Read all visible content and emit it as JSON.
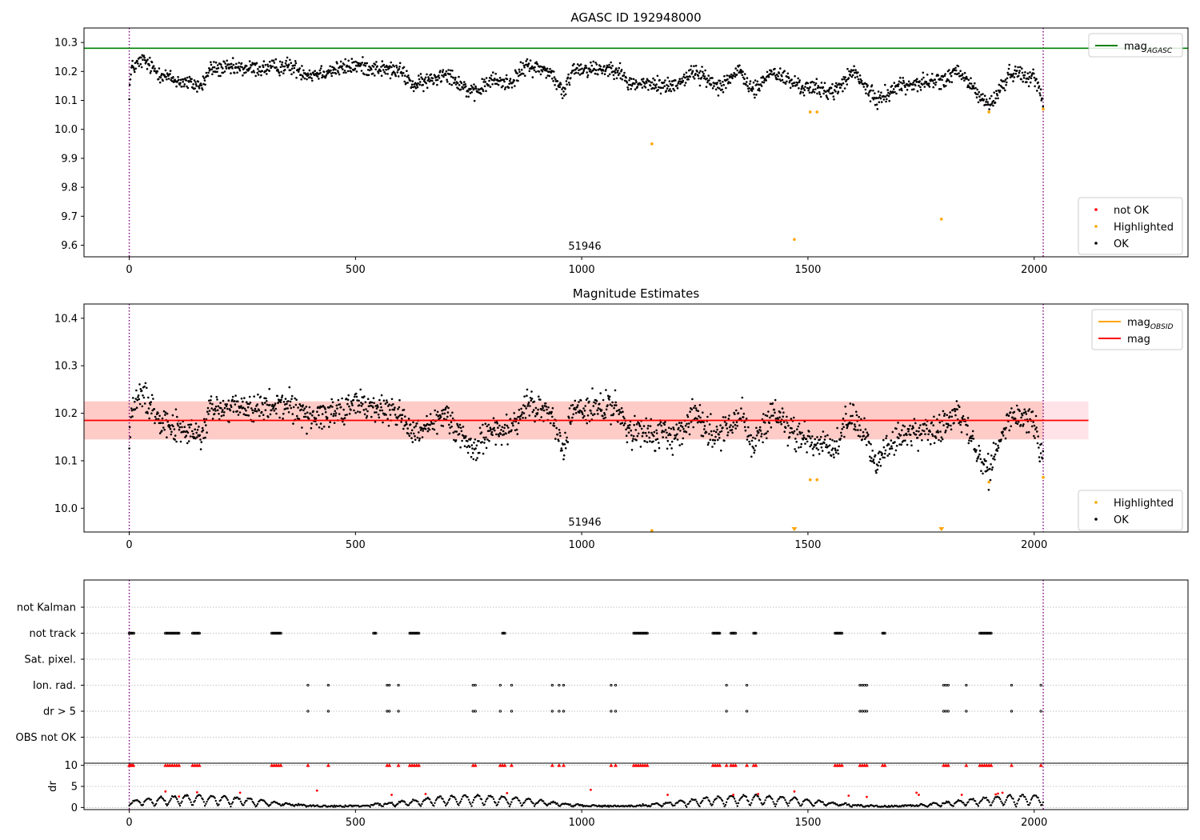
{
  "chart_data": [
    {
      "type": "scatter",
      "title": "AGASC ID 192948000",
      "xlabel": "",
      "ylabel": "",
      "xlim": [
        -100,
        2340
      ],
      "ylim": [
        9.56,
        10.35
      ],
      "x_ticks": [
        0,
        500,
        1000,
        1500,
        2000
      ],
      "y_ticks": [
        9.6,
        9.7,
        9.8,
        9.9,
        10.0,
        10.1,
        10.2,
        10.3
      ],
      "annotation": "51946",
      "vlines": [
        0,
        2020
      ],
      "hlines": [
        {
          "name": "mag",
          "sub": "AGASC",
          "y": 10.28,
          "color": "#008000"
        }
      ],
      "legend_lines": [
        {
          "name": "mag",
          "sub": "AGASC",
          "color": "#008000"
        }
      ],
      "legend_points": [
        {
          "name": "not OK",
          "color": "#ff0000"
        },
        {
          "name": "Highlighted",
          "color": "#ffa500"
        },
        {
          "name": "OK",
          "color": "#000000"
        }
      ],
      "series": [
        {
          "name": "OK",
          "color": "#000000",
          "noise": 0.02,
          "trend": [
            [
              0,
              10.13
            ],
            [
              5,
              10.21
            ],
            [
              30,
              10.24
            ],
            [
              60,
              10.2
            ],
            [
              100,
              10.17
            ],
            [
              160,
              10.15
            ],
            [
              180,
              10.21
            ],
            [
              300,
              10.21
            ],
            [
              350,
              10.22
            ],
            [
              400,
              10.19
            ],
            [
              500,
              10.22
            ],
            [
              600,
              10.2
            ],
            [
              630,
              10.15
            ],
            [
              680,
              10.18
            ],
            [
              700,
              10.2
            ],
            [
              760,
              10.12
            ],
            [
              800,
              10.17
            ],
            [
              840,
              10.16
            ],
            [
              880,
              10.22
            ],
            [
              930,
              10.2
            ],
            [
              960,
              10.12
            ],
            [
              980,
              10.21
            ],
            [
              1080,
              10.21
            ],
            [
              1100,
              10.16
            ],
            [
              1200,
              10.15
            ],
            [
              1250,
              10.2
            ],
            [
              1300,
              10.15
            ],
            [
              1350,
              10.2
            ],
            [
              1380,
              10.13
            ],
            [
              1420,
              10.2
            ],
            [
              1480,
              10.15
            ],
            [
              1560,
              10.13
            ],
            [
              1600,
              10.2
            ],
            [
              1650,
              10.1
            ],
            [
              1700,
              10.15
            ],
            [
              1800,
              10.17
            ],
            [
              1830,
              10.2
            ],
            [
              1850,
              10.17
            ],
            [
              1900,
              10.08
            ],
            [
              1950,
              10.2
            ],
            [
              2000,
              10.18
            ],
            [
              2020,
              10.1
            ]
          ]
        },
        {
          "name": "Highlighted",
          "color": "#ffa500",
          "points": [
            [
              1155,
              9.95
            ],
            [
              1470,
              9.62
            ],
            [
              1505,
              10.06
            ],
            [
              1520,
              10.06
            ],
            [
              1795,
              9.69
            ],
            [
              1900,
              10.06
            ],
            [
              2020,
              10.07
            ]
          ]
        }
      ]
    },
    {
      "type": "scatter",
      "title": "Magnitude Estimates",
      "xlabel": "",
      "ylabel": "",
      "xlim": [
        -100,
        2340
      ],
      "ylim": [
        9.95,
        10.43
      ],
      "x_ticks": [
        0,
        500,
        1000,
        1500,
        2000
      ],
      "y_ticks": [
        10.0,
        10.1,
        10.2,
        10.3,
        10.4
      ],
      "annotation": "51946",
      "vlines": [
        0,
        2020
      ],
      "bands": [
        {
          "x0": -100,
          "x1": 2020,
          "y0": 10.145,
          "y1": 10.225,
          "color": "#ffa07a",
          "opacity": 0.45
        },
        {
          "x0": -100,
          "x1": 2120,
          "y0": 10.145,
          "y1": 10.225,
          "color": "#ffc0cb",
          "opacity": 0.45
        }
      ],
      "hlines": [
        {
          "name": "mag",
          "y": 10.185,
          "x0": -100,
          "x1": 2120,
          "color": "#ff0000"
        }
      ],
      "legend_lines": [
        {
          "name": "mag",
          "sub": "OBSID",
          "color": "#ffa500"
        },
        {
          "name": "mag",
          "color": "#ff0000"
        }
      ],
      "legend_points": [
        {
          "name": "Highlighted",
          "color": "#ffa500"
        },
        {
          "name": "OK",
          "color": "#000000"
        }
      ],
      "series": [
        {
          "name": "OK",
          "color": "#000000",
          "noise": 0.022,
          "trend": [
            [
              0,
              10.13
            ],
            [
              5,
              10.21
            ],
            [
              30,
              10.24
            ],
            [
              60,
              10.2
            ],
            [
              100,
              10.17
            ],
            [
              160,
              10.15
            ],
            [
              180,
              10.21
            ],
            [
              300,
              10.21
            ],
            [
              350,
              10.22
            ],
            [
              400,
              10.19
            ],
            [
              500,
              10.22
            ],
            [
              600,
              10.2
            ],
            [
              630,
              10.15
            ],
            [
              680,
              10.18
            ],
            [
              700,
              10.2
            ],
            [
              760,
              10.12
            ],
            [
              800,
              10.17
            ],
            [
              840,
              10.16
            ],
            [
              880,
              10.22
            ],
            [
              930,
              10.2
            ],
            [
              960,
              10.12
            ],
            [
              980,
              10.21
            ],
            [
              1080,
              10.21
            ],
            [
              1100,
              10.16
            ],
            [
              1200,
              10.15
            ],
            [
              1250,
              10.2
            ],
            [
              1300,
              10.15
            ],
            [
              1350,
              10.2
            ],
            [
              1380,
              10.13
            ],
            [
              1420,
              10.2
            ],
            [
              1480,
              10.15
            ],
            [
              1560,
              10.13
            ],
            [
              1600,
              10.2
            ],
            [
              1650,
              10.1
            ],
            [
              1700,
              10.15
            ],
            [
              1800,
              10.17
            ],
            [
              1830,
              10.2
            ],
            [
              1850,
              10.17
            ],
            [
              1900,
              10.08
            ],
            [
              1950,
              10.2
            ],
            [
              2000,
              10.18
            ],
            [
              2020,
              10.1
            ]
          ]
        },
        {
          "name": "Highlighted",
          "color": "#ffa500",
          "points": [
            [
              1155,
              9.953
            ],
            [
              1505,
              10.06
            ],
            [
              1520,
              10.06
            ],
            [
              1900,
              10.055
            ],
            [
              2020,
              10.065
            ]
          ],
          "arrows": [
            1470,
            1795
          ]
        }
      ]
    },
    {
      "type": "scatter",
      "title": "",
      "xlabel": "",
      "ylabel": "",
      "xlim": [
        -100,
        2340
      ],
      "x_ticks": [
        0,
        500,
        1000,
        1500,
        2000
      ],
      "vlines": [
        0,
        2020
      ],
      "categories": [
        "not Kalman",
        "not track",
        "Sat. pixel.",
        "Ion. rad.",
        "dr > 5",
        "OBS not OK"
      ],
      "flags": {
        "not track": [
          [
            0,
            10
          ],
          [
            80,
            110
          ],
          [
            140,
            155
          ],
          [
            315,
            335
          ],
          [
            540,
            545
          ],
          [
            620,
            640
          ],
          [
            825,
            830
          ],
          [
            1115,
            1145
          ],
          [
            1290,
            1305
          ],
          [
            1330,
            1340
          ],
          [
            1380,
            1385
          ],
          [
            1560,
            1575
          ],
          [
            1665,
            1670
          ],
          [
            1880,
            1905
          ]
        ],
        "Ion. rad.": [
          395,
          440,
          570,
          575,
          595,
          760,
          765,
          820,
          845,
          935,
          950,
          960,
          1065,
          1075,
          1320,
          1365,
          1615,
          1620,
          1625,
          1630,
          1800,
          1805,
          1810,
          1850,
          1950,
          2015
        ],
        "dr > 5": [
          395,
          440,
          570,
          575,
          595,
          760,
          765,
          820,
          845,
          935,
          950,
          960,
          1065,
          1075,
          1320,
          1365,
          1615,
          1620,
          1625,
          1630,
          1800,
          1805,
          1810,
          1850,
          1950,
          2015
        ]
      }
    },
    {
      "type": "scatter",
      "title": "",
      "xlabel": "",
      "ylabel": "dr",
      "xlim": [
        -100,
        2340
      ],
      "ylim": [
        -0.5,
        10.5
      ],
      "x_ticks": [
        0,
        500,
        1000,
        1500,
        2000
      ],
      "x_tick_labels": [
        "0",
        "500",
        "1000",
        "1500",
        "2000"
      ],
      "y_ticks": [
        0,
        5,
        10
      ],
      "vlines": [
        0,
        2020
      ],
      "series": [
        {
          "name": "OK",
          "color": "#000000",
          "shape": "sawtooth",
          "base": 0.3,
          "amp": 2.6,
          "period": 28
        },
        {
          "name": "not OK",
          "color": "#ff0000",
          "clipped_x": [
            0,
            3,
            6,
            9,
            80,
            85,
            90,
            95,
            100,
            105,
            110,
            140,
            145,
            150,
            155,
            315,
            320,
            325,
            330,
            335,
            395,
            440,
            570,
            575,
            595,
            620,
            625,
            630,
            635,
            640,
            760,
            765,
            820,
            825,
            830,
            845,
            935,
            950,
            960,
            1065,
            1075,
            1115,
            1120,
            1125,
            1130,
            1135,
            1140,
            1145,
            1290,
            1295,
            1300,
            1305,
            1320,
            1330,
            1335,
            1340,
            1365,
            1380,
            1385,
            1560,
            1565,
            1570,
            1575,
            1615,
            1620,
            1625,
            1630,
            1665,
            1670,
            1800,
            1805,
            1810,
            1850,
            1880,
            1885,
            1890,
            1895,
            1900,
            1905,
            1950,
            2015
          ],
          "points": [
            [
              80,
              3.8
            ],
            [
              110,
              2.6
            ],
            [
              150,
              3.6
            ],
            [
              245,
              3.5
            ],
            [
              415,
              4.0
            ],
            [
              580,
              3.0
            ],
            [
              655,
              3.2
            ],
            [
              835,
              3.4
            ],
            [
              1020,
              4.2
            ],
            [
              1190,
              3.0
            ],
            [
              1335,
              3.0
            ],
            [
              1390,
              3.2
            ],
            [
              1470,
              3.8
            ],
            [
              1590,
              2.8
            ],
            [
              1630,
              2.5
            ],
            [
              1740,
              3.5
            ],
            [
              1745,
              3.0
            ],
            [
              1840,
              3.0
            ],
            [
              1915,
              3.1
            ],
            [
              1920,
              3.3
            ],
            [
              1930,
              3.5
            ]
          ]
        }
      ]
    }
  ]
}
